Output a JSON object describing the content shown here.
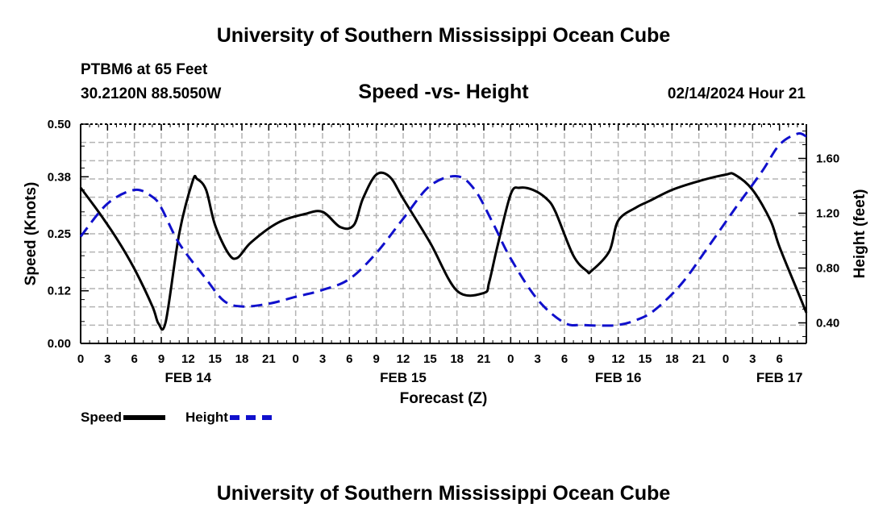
{
  "header": {
    "title_top": "University of Southern Mississippi Ocean Cube",
    "title_bottom": "University of Southern Mississippi Ocean Cube",
    "station": "PTBM6 at 65 Feet",
    "coordinates": "30.2120N  88.5050W",
    "subtitle": "Speed -vs- Height",
    "timestamp": "02/14/2024 Hour 21"
  },
  "colors": {
    "speed": "#000000",
    "height": "#1010cc",
    "grid": "#b4b4b4"
  },
  "legend": {
    "speed_label": "Speed",
    "height_label": "Height"
  },
  "chart_data": {
    "type": "line",
    "title": "Speed -vs- Height",
    "xlabel": "Forecast (Z)",
    "ylabel": "Speed (Knots)",
    "y2label": "Height (feet)",
    "x_range_hours": [
      0,
      81
    ],
    "x_tick_step_hours": 3,
    "x_tick_labels": [
      "0",
      "3",
      "6",
      "9",
      "12",
      "15",
      "18",
      "21",
      "0",
      "3",
      "6",
      "9",
      "12",
      "15",
      "18",
      "21",
      "0",
      "3",
      "6",
      "9",
      "12",
      "15",
      "18",
      "21",
      "0",
      "3",
      "6"
    ],
    "date_labels": [
      {
        "label": "FEB 14",
        "hour": 12
      },
      {
        "label": "FEB 15",
        "hour": 36
      },
      {
        "label": "FEB 16",
        "hour": 60
      },
      {
        "label": "FEB 17",
        "hour": 78
      }
    ],
    "ylim": [
      0,
      0.5
    ],
    "y_ticks": [
      0,
      0.12,
      0.25,
      0.38,
      0.5
    ],
    "y_tick_labels": [
      "0.00",
      "0.12",
      "0.25",
      "0.38",
      "0.50"
    ],
    "y2lim": [
      0.25,
      1.85
    ],
    "y2_ticks": [
      0.4,
      0.8,
      1.2,
      1.6
    ],
    "y2_tick_labels": [
      "0.40",
      "0.80",
      "1.20",
      "1.60"
    ],
    "grid": true,
    "series": [
      {
        "name": "Speed",
        "axis": "left",
        "style": "solid",
        "x": [
          0,
          2,
          4,
          6,
          8,
          8.7,
          9.5,
          11,
          12.5,
          13,
          14,
          15,
          16.5,
          17.5,
          19,
          22,
          25,
          27,
          29,
          30.5,
          31.5,
          33,
          34.5,
          36,
          39,
          42,
          45,
          45.6,
          46.5,
          48,
          49,
          50.5,
          52,
          53,
          55,
          56.5,
          57,
          59,
          60,
          62,
          63.5,
          66,
          69,
          72,
          73,
          75,
          77,
          78,
          80,
          81
        ],
        "values": [
          0.355,
          0.3,
          0.24,
          0.17,
          0.085,
          0.045,
          0.05,
          0.25,
          0.37,
          0.375,
          0.35,
          0.27,
          0.205,
          0.195,
          0.23,
          0.275,
          0.295,
          0.3,
          0.265,
          0.27,
          0.33,
          0.385,
          0.38,
          0.33,
          0.23,
          0.12,
          0.115,
          0.14,
          0.22,
          0.34,
          0.355,
          0.35,
          0.33,
          0.3,
          0.2,
          0.165,
          0.165,
          0.21,
          0.28,
          0.31,
          0.325,
          0.35,
          0.37,
          0.385,
          0.385,
          0.35,
          0.28,
          0.22,
          0.12,
          0.07
        ]
      },
      {
        "name": "Height",
        "axis": "right",
        "style": "dashed",
        "x": [
          0,
          3,
          6,
          8,
          9,
          11,
          14,
          16,
          18,
          21,
          24,
          27,
          30,
          33,
          36,
          39,
          42,
          44,
          46,
          48,
          51,
          54,
          56,
          58,
          60,
          62,
          64,
          67,
          70,
          73,
          76,
          78,
          80,
          81
        ],
        "values": [
          1.03,
          1.27,
          1.37,
          1.32,
          1.24,
          0.98,
          0.72,
          0.56,
          0.52,
          0.54,
          0.59,
          0.64,
          0.72,
          0.91,
          1.16,
          1.4,
          1.47,
          1.37,
          1.13,
          0.87,
          0.57,
          0.4,
          0.385,
          0.38,
          0.385,
          0.42,
          0.49,
          0.68,
          0.95,
          1.23,
          1.5,
          1.7,
          1.78,
          1.76
        ]
      }
    ]
  }
}
